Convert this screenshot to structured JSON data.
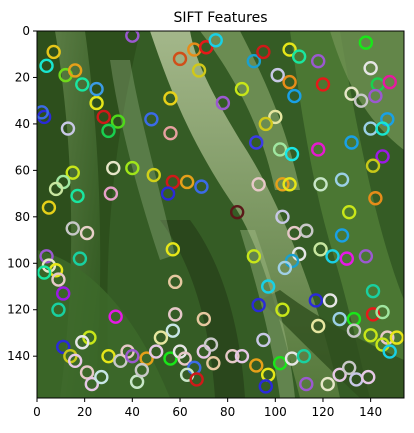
{
  "chart_data": {
    "type": "scatter",
    "title": "SIFT Features",
    "xlabel": "",
    "ylabel": "",
    "xlim": [
      0,
      154
    ],
    "ylim": [
      158,
      0
    ],
    "x_ticks": [
      0,
      20,
      40,
      60,
      80,
      100,
      120,
      140
    ],
    "y_ticks": [
      0,
      20,
      40,
      60,
      80,
      100,
      120,
      140
    ],
    "grid": false,
    "legend": "none",
    "background_image": "photo-of-green-leaves",
    "marker": "ring",
    "keypoints": [
      {
        "x": 40,
        "y": 2,
        "color": "#9b59d0"
      },
      {
        "x": 7,
        "y": 9,
        "color": "#e6c619"
      },
      {
        "x": 4,
        "y": 15,
        "color": "#19e6d0"
      },
      {
        "x": 12,
        "y": 19,
        "color": "#6fd81a"
      },
      {
        "x": 16,
        "y": 17,
        "color": "#e6a019"
      },
      {
        "x": 19,
        "y": 23,
        "color": "#19e6a0"
      },
      {
        "x": 25,
        "y": 31,
        "color": "#e6e619"
      },
      {
        "x": 28,
        "y": 37,
        "color": "#d01919"
      },
      {
        "x": 34,
        "y": 39,
        "color": "#4fd81a"
      },
      {
        "x": 30,
        "y": 43,
        "color": "#19d04f"
      },
      {
        "x": 25,
        "y": 25,
        "color": "#3b9be6"
      },
      {
        "x": 3,
        "y": 37,
        "color": "#2a2ad8"
      },
      {
        "x": 2,
        "y": 35,
        "color": "#3b6be6"
      },
      {
        "x": 13,
        "y": 42,
        "color": "#c8c8e6"
      },
      {
        "x": 48,
        "y": 38,
        "color": "#3b6be6"
      },
      {
        "x": 56,
        "y": 44,
        "color": "#e6a0a0"
      },
      {
        "x": 56,
        "y": 29,
        "color": "#e6d019"
      },
      {
        "x": 60,
        "y": 12,
        "color": "#d04f19"
      },
      {
        "x": 66,
        "y": 8,
        "color": "#e68c19"
      },
      {
        "x": 71,
        "y": 7,
        "color": "#e61919"
      },
      {
        "x": 75,
        "y": 4,
        "color": "#19d0e6"
      },
      {
        "x": 68,
        "y": 17,
        "color": "#d0c819"
      },
      {
        "x": 78,
        "y": 31,
        "color": "#9b59d0"
      },
      {
        "x": 86,
        "y": 25,
        "color": "#c8e619"
      },
      {
        "x": 91,
        "y": 13,
        "color": "#19a0d0"
      },
      {
        "x": 95,
        "y": 9,
        "color": "#d01919"
      },
      {
        "x": 101,
        "y": 19,
        "color": "#c8c8e6"
      },
      {
        "x": 106,
        "y": 8,
        "color": "#e6e619"
      },
      {
        "x": 110,
        "y": 11,
        "color": "#19e6a0"
      },
      {
        "x": 118,
        "y": 13,
        "color": "#9b59d0"
      },
      {
        "x": 106,
        "y": 22,
        "color": "#e68c19"
      },
      {
        "x": 108,
        "y": 28,
        "color": "#19a0e6"
      },
      {
        "x": 120,
        "y": 23,
        "color": "#e61919"
      },
      {
        "x": 132,
        "y": 27,
        "color": "#e6e6c8"
      },
      {
        "x": 136,
        "y": 30,
        "color": "#c8c8c8"
      },
      {
        "x": 140,
        "y": 16,
        "color": "#e6e6e6"
      },
      {
        "x": 143,
        "y": 23,
        "color": "#19d04f"
      },
      {
        "x": 148,
        "y": 22,
        "color": "#e619a0"
      },
      {
        "x": 138,
        "y": 5,
        "color": "#19e619"
      },
      {
        "x": 142,
        "y": 28,
        "color": "#9b59d0"
      },
      {
        "x": 147,
        "y": 38,
        "color": "#19a0e6"
      },
      {
        "x": 140,
        "y": 42,
        "color": "#9bd0e6"
      },
      {
        "x": 145,
        "y": 42,
        "color": "#19e6d0"
      },
      {
        "x": 100,
        "y": 37,
        "color": "#e6e6a0"
      },
      {
        "x": 96,
        "y": 40,
        "color": "#d0c819"
      },
      {
        "x": 92,
        "y": 48,
        "color": "#3b3be6"
      },
      {
        "x": 102,
        "y": 51,
        "color": "#a0e6a0"
      },
      {
        "x": 107,
        "y": 53,
        "color": "#19e6e6"
      },
      {
        "x": 118,
        "y": 51,
        "color": "#e619d0"
      },
      {
        "x": 132,
        "y": 48,
        "color": "#19a0e6"
      },
      {
        "x": 145,
        "y": 54,
        "color": "#9b19e6"
      },
      {
        "x": 141,
        "y": 58,
        "color": "#c8c819"
      },
      {
        "x": 32,
        "y": 59,
        "color": "#e6e6c8"
      },
      {
        "x": 40,
        "y": 59,
        "color": "#a0e619"
      },
      {
        "x": 49,
        "y": 62,
        "color": "#d0d019"
      },
      {
        "x": 57,
        "y": 65,
        "color": "#d01919"
      },
      {
        "x": 63,
        "y": 65,
        "color": "#e6a019"
      },
      {
        "x": 69,
        "y": 67,
        "color": "#3b6be6"
      },
      {
        "x": 55,
        "y": 70,
        "color": "#2a2ad8"
      },
      {
        "x": 31,
        "y": 70,
        "color": "#e6a0c8"
      },
      {
        "x": 15,
        "y": 61,
        "color": "#c8e619"
      },
      {
        "x": 11,
        "y": 65,
        "color": "#a0e6a0"
      },
      {
        "x": 8,
        "y": 68,
        "color": "#c8e6a0"
      },
      {
        "x": 17,
        "y": 71,
        "color": "#19e6a0"
      },
      {
        "x": 5,
        "y": 76,
        "color": "#e6d019"
      },
      {
        "x": 93,
        "y": 66,
        "color": "#e6c8c8"
      },
      {
        "x": 103,
        "y": 66,
        "color": "#e6a019"
      },
      {
        "x": 106,
        "y": 66,
        "color": "#e6e619"
      },
      {
        "x": 119,
        "y": 66,
        "color": "#c8e6c8"
      },
      {
        "x": 128,
        "y": 64,
        "color": "#9bd0e6"
      },
      {
        "x": 142,
        "y": 72,
        "color": "#e68c19"
      },
      {
        "x": 131,
        "y": 78,
        "color": "#c8e619"
      },
      {
        "x": 84,
        "y": 78,
        "color": "#5a1919"
      },
      {
        "x": 103,
        "y": 80,
        "color": "#c8c8e6"
      },
      {
        "x": 108,
        "y": 87,
        "color": "#e6c8c8"
      },
      {
        "x": 113,
        "y": 86,
        "color": "#c8c8c8"
      },
      {
        "x": 119,
        "y": 94,
        "color": "#c8e6a0"
      },
      {
        "x": 110,
        "y": 96,
        "color": "#e6e6e6"
      },
      {
        "x": 107,
        "y": 99,
        "color": "#19a0d0"
      },
      {
        "x": 104,
        "y": 102,
        "color": "#a0d0e6"
      },
      {
        "x": 91,
        "y": 97,
        "color": "#c8e619"
      },
      {
        "x": 124,
        "y": 97,
        "color": "#19d0e6"
      },
      {
        "x": 128,
        "y": 88,
        "color": "#19a0e6"
      },
      {
        "x": 130,
        "y": 98,
        "color": "#e619e6"
      },
      {
        "x": 138,
        "y": 97,
        "color": "#9b59d0"
      },
      {
        "x": 57,
        "y": 94,
        "color": "#e6e619"
      },
      {
        "x": 15,
        "y": 85,
        "color": "#c8c8c8"
      },
      {
        "x": 21,
        "y": 87,
        "color": "#e6d0c8"
      },
      {
        "x": 18,
        "y": 98,
        "color": "#19d0a0"
      },
      {
        "x": 4,
        "y": 97,
        "color": "#9b59d0"
      },
      {
        "x": 5,
        "y": 101,
        "color": "#e6e6c8"
      },
      {
        "x": 8,
        "y": 103,
        "color": "#e6e619"
      },
      {
        "x": 3,
        "y": 104,
        "color": "#19e6a0"
      },
      {
        "x": 9,
        "y": 107,
        "color": "#e6c8c8"
      },
      {
        "x": 11,
        "y": 113,
        "color": "#9b19e6"
      },
      {
        "x": 9,
        "y": 120,
        "color": "#19d0a0"
      },
      {
        "x": 33,
        "y": 123,
        "color": "#e619e6"
      },
      {
        "x": 22,
        "y": 132,
        "color": "#c8e619"
      },
      {
        "x": 19,
        "y": 134,
        "color": "#e6e6e6"
      },
      {
        "x": 11,
        "y": 136,
        "color": "#2a2ad8"
      },
      {
        "x": 14,
        "y": 140,
        "color": "#c8c819"
      },
      {
        "x": 16,
        "y": 142,
        "color": "#e6c8e6"
      },
      {
        "x": 58,
        "y": 108,
        "color": "#e6c8a0"
      },
      {
        "x": 58,
        "y": 122,
        "color": "#e6c8c8"
      },
      {
        "x": 57,
        "y": 129,
        "color": "#c8e6e6"
      },
      {
        "x": 52,
        "y": 132,
        "color": "#e6e6a0"
      },
      {
        "x": 70,
        "y": 124,
        "color": "#e6c8a0"
      },
      {
        "x": 97,
        "y": 110,
        "color": "#19d0e6"
      },
      {
        "x": 93,
        "y": 118,
        "color": "#2a2ad8"
      },
      {
        "x": 103,
        "y": 120,
        "color": "#c8e619"
      },
      {
        "x": 117,
        "y": 116,
        "color": "#2a2ad8"
      },
      {
        "x": 123,
        "y": 116,
        "color": "#e6e6e6"
      },
      {
        "x": 127,
        "y": 124,
        "color": "#9bd0e6"
      },
      {
        "x": 133,
        "y": 124,
        "color": "#19e619"
      },
      {
        "x": 141,
        "y": 112,
        "color": "#19d0a0"
      },
      {
        "x": 141,
        "y": 122,
        "color": "#e61919"
      },
      {
        "x": 145,
        "y": 121,
        "color": "#a0e6a0"
      },
      {
        "x": 118,
        "y": 127,
        "color": "#e6e6a0"
      },
      {
        "x": 95,
        "y": 133,
        "color": "#c8c8e6"
      },
      {
        "x": 133,
        "y": 129,
        "color": "#c8c8c8"
      },
      {
        "x": 140,
        "y": 131,
        "color": "#c8e619"
      },
      {
        "x": 147,
        "y": 132,
        "color": "#e6c8c8"
      },
      {
        "x": 151,
        "y": 132,
        "color": "#e6e619"
      },
      {
        "x": 145,
        "y": 135,
        "color": "#c8e619"
      },
      {
        "x": 148,
        "y": 138,
        "color": "#19d0e6"
      },
      {
        "x": 30,
        "y": 140,
        "color": "#e6e619"
      },
      {
        "x": 35,
        "y": 142,
        "color": "#c8c8c8"
      },
      {
        "x": 38,
        "y": 138,
        "color": "#e6c8c8"
      },
      {
        "x": 40,
        "y": 140,
        "color": "#9b59d0"
      },
      {
        "x": 46,
        "y": 141,
        "color": "#e6a019"
      },
      {
        "x": 50,
        "y": 138,
        "color": "#e6c8e6"
      },
      {
        "x": 56,
        "y": 141,
        "color": "#19e619"
      },
      {
        "x": 60,
        "y": 138,
        "color": "#e6e6e6"
      },
      {
        "x": 62,
        "y": 141,
        "color": "#e6c8c8"
      },
      {
        "x": 66,
        "y": 145,
        "color": "#3b6be6"
      },
      {
        "x": 70,
        "y": 138,
        "color": "#e6c8e6"
      },
      {
        "x": 73,
        "y": 135,
        "color": "#c8c8c8"
      },
      {
        "x": 74,
        "y": 143,
        "color": "#e6c8a0"
      },
      {
        "x": 63,
        "y": 148,
        "color": "#c8e6c8"
      },
      {
        "x": 67,
        "y": 150,
        "color": "#d01919"
      },
      {
        "x": 82,
        "y": 140,
        "color": "#e6c8c8"
      },
      {
        "x": 86,
        "y": 140,
        "color": "#e6c8e6"
      },
      {
        "x": 92,
        "y": 144,
        "color": "#e6a019"
      },
      {
        "x": 97,
        "y": 148,
        "color": "#e6e619"
      },
      {
        "x": 96,
        "y": 153,
        "color": "#2a2ad8"
      },
      {
        "x": 102,
        "y": 143,
        "color": "#19e619"
      },
      {
        "x": 107,
        "y": 141,
        "color": "#e6e6e6"
      },
      {
        "x": 112,
        "y": 140,
        "color": "#19d0a0"
      },
      {
        "x": 113,
        "y": 152,
        "color": "#9b59d0"
      },
      {
        "x": 122,
        "y": 152,
        "color": "#e6e6c8"
      },
      {
        "x": 127,
        "y": 148,
        "color": "#e6c8e6"
      },
      {
        "x": 131,
        "y": 145,
        "color": "#c8c8c8"
      },
      {
        "x": 134,
        "y": 150,
        "color": "#c8c8e6"
      },
      {
        "x": 139,
        "y": 149,
        "color": "#e6c8e6"
      },
      {
        "x": 21,
        "y": 147,
        "color": "#e6c8c8"
      },
      {
        "x": 23,
        "y": 152,
        "color": "#e6c8e6"
      },
      {
        "x": 27,
        "y": 149,
        "color": "#c8e6e6"
      },
      {
        "x": 42,
        "y": 151,
        "color": "#c8e6c8"
      },
      {
        "x": 44,
        "y": 146,
        "color": "#c8c8c8"
      }
    ]
  }
}
